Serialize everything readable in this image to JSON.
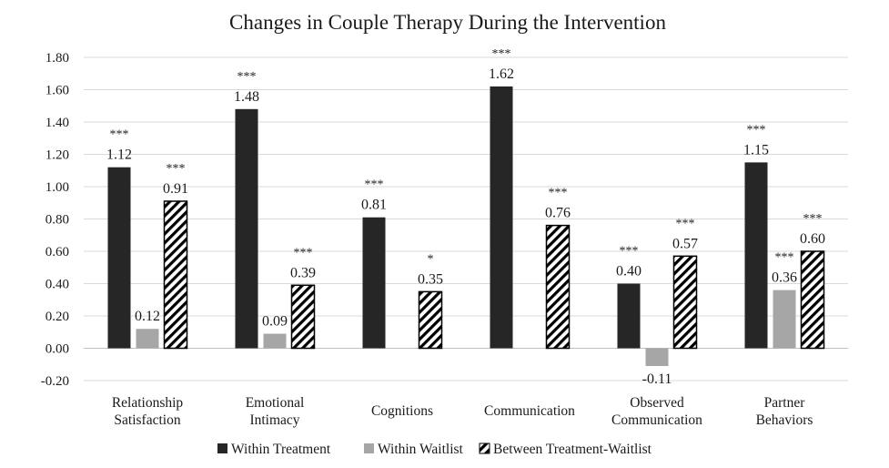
{
  "chart_data": {
    "type": "bar",
    "title": "Changes in Couple Therapy During the Intervention",
    "xlabel": "",
    "ylabel": "",
    "ylim": [
      -0.2,
      1.8
    ],
    "yticks": [
      "1.80",
      "1.60",
      "1.40",
      "1.20",
      "1.00",
      "0.80",
      "0.60",
      "0.40",
      "0.20",
      "0.00",
      "-0.20"
    ],
    "grid": true,
    "legend_position": "bottom",
    "categories": [
      [
        "Relationship",
        "Satisfaction"
      ],
      [
        "Emotional",
        "Intimacy"
      ],
      [
        "Cognitions"
      ],
      [
        "Communication"
      ],
      [
        "Observed",
        "Communication"
      ],
      [
        "Partner",
        "Behaviors"
      ]
    ],
    "series": [
      {
        "name": "Within Treatment",
        "pattern": "solid-dark",
        "color": "#262626",
        "values": [
          1.12,
          1.48,
          0.81,
          1.62,
          0.4,
          1.15
        ],
        "labels": [
          "1.12",
          "1.48",
          "0.81",
          "1.62",
          "0.40",
          "1.15"
        ],
        "significance": [
          "***",
          "***",
          "***",
          "***",
          "***",
          "***"
        ]
      },
      {
        "name": "Within Waitlist",
        "pattern": "solid-gray",
        "color": "#a6a6a6",
        "values": [
          0.12,
          0.09,
          null,
          null,
          -0.11,
          0.36
        ],
        "labels": [
          "0.12",
          "0.09",
          "",
          "",
          "-0.11",
          "0.36"
        ],
        "significance": [
          "",
          "",
          "",
          "",
          "",
          "***"
        ]
      },
      {
        "name": "Between Treatment-Waitlist",
        "pattern": "diagonal-hatch",
        "color": "#000000",
        "values": [
          0.91,
          0.39,
          0.35,
          0.76,
          0.57,
          0.6
        ],
        "labels": [
          "0.91",
          "0.39",
          "0.35",
          "0.76",
          "0.57",
          "0.60"
        ],
        "significance": [
          "***",
          "***",
          "*",
          "***",
          "***",
          "***"
        ]
      }
    ]
  }
}
